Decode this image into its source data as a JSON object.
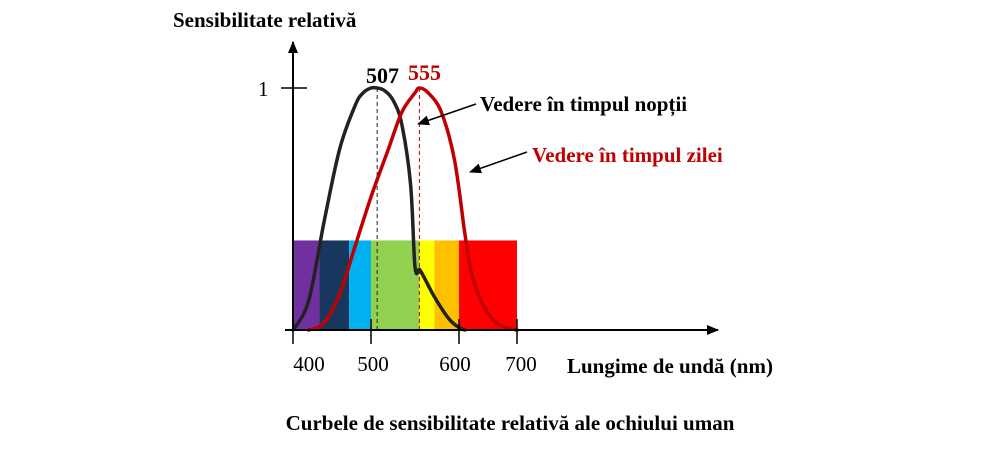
{
  "chart_data": {
    "type": "line",
    "ylabel": "Sensibilitate relativă",
    "xlabel": "Lungime de undă (nm)",
    "caption": "Curbele de sensibilitate relativă ale ochiului uman",
    "x_ticks": [
      "400",
      "500",
      "600",
      "700"
    ],
    "y_ticks": [
      "1"
    ],
    "xlim": [
      400,
      700
    ],
    "ylim": [
      0,
      1
    ],
    "series": [
      {
        "name": "Vedere în timpul nopții",
        "peak_label": "507",
        "color": "#222222",
        "x": [
          400,
          420,
          440,
          460,
          480,
          490,
          500,
          507,
          515,
          525,
          535,
          545,
          550,
          555,
          560,
          570,
          580,
          590,
          600,
          610
        ],
        "y": [
          0.0,
          0.12,
          0.45,
          0.75,
          0.93,
          0.98,
          1.0,
          1.0,
          0.99,
          0.95,
          0.85,
          0.6,
          0.26,
          0.25,
          0.22,
          0.15,
          0.09,
          0.04,
          0.01,
          0.0
        ]
      },
      {
        "name": "Vedere în timpul zilei",
        "peak_label": "555",
        "color": "#c00000",
        "x": [
          420,
          440,
          460,
          480,
          500,
          520,
          535,
          550,
          555,
          565,
          580,
          595,
          610,
          620,
          630,
          640,
          650,
          660,
          670,
          680,
          690,
          700
        ],
        "y": [
          0.0,
          0.03,
          0.15,
          0.35,
          0.55,
          0.75,
          0.9,
          0.98,
          1.0,
          0.98,
          0.9,
          0.7,
          0.4,
          0.25,
          0.17,
          0.11,
          0.07,
          0.04,
          0.02,
          0.01,
          0.005,
          0.0
        ]
      }
    ],
    "spectrum_band": {
      "level": 0.37,
      "segments": [
        {
          "from": 400,
          "to": 434,
          "color": "#7030a0"
        },
        {
          "from": 434,
          "to": 472,
          "color": "#17375e"
        },
        {
          "from": 472,
          "to": 500,
          "color": "#00b0f0"
        },
        {
          "from": 500,
          "to": 555,
          "color": "#92d050"
        },
        {
          "from": 555,
          "to": 572,
          "color": "#ffff00"
        },
        {
          "from": 572,
          "to": 600,
          "color": "#ffc000"
        },
        {
          "from": 600,
          "to": 700,
          "color": "#ff0000"
        }
      ]
    }
  }
}
